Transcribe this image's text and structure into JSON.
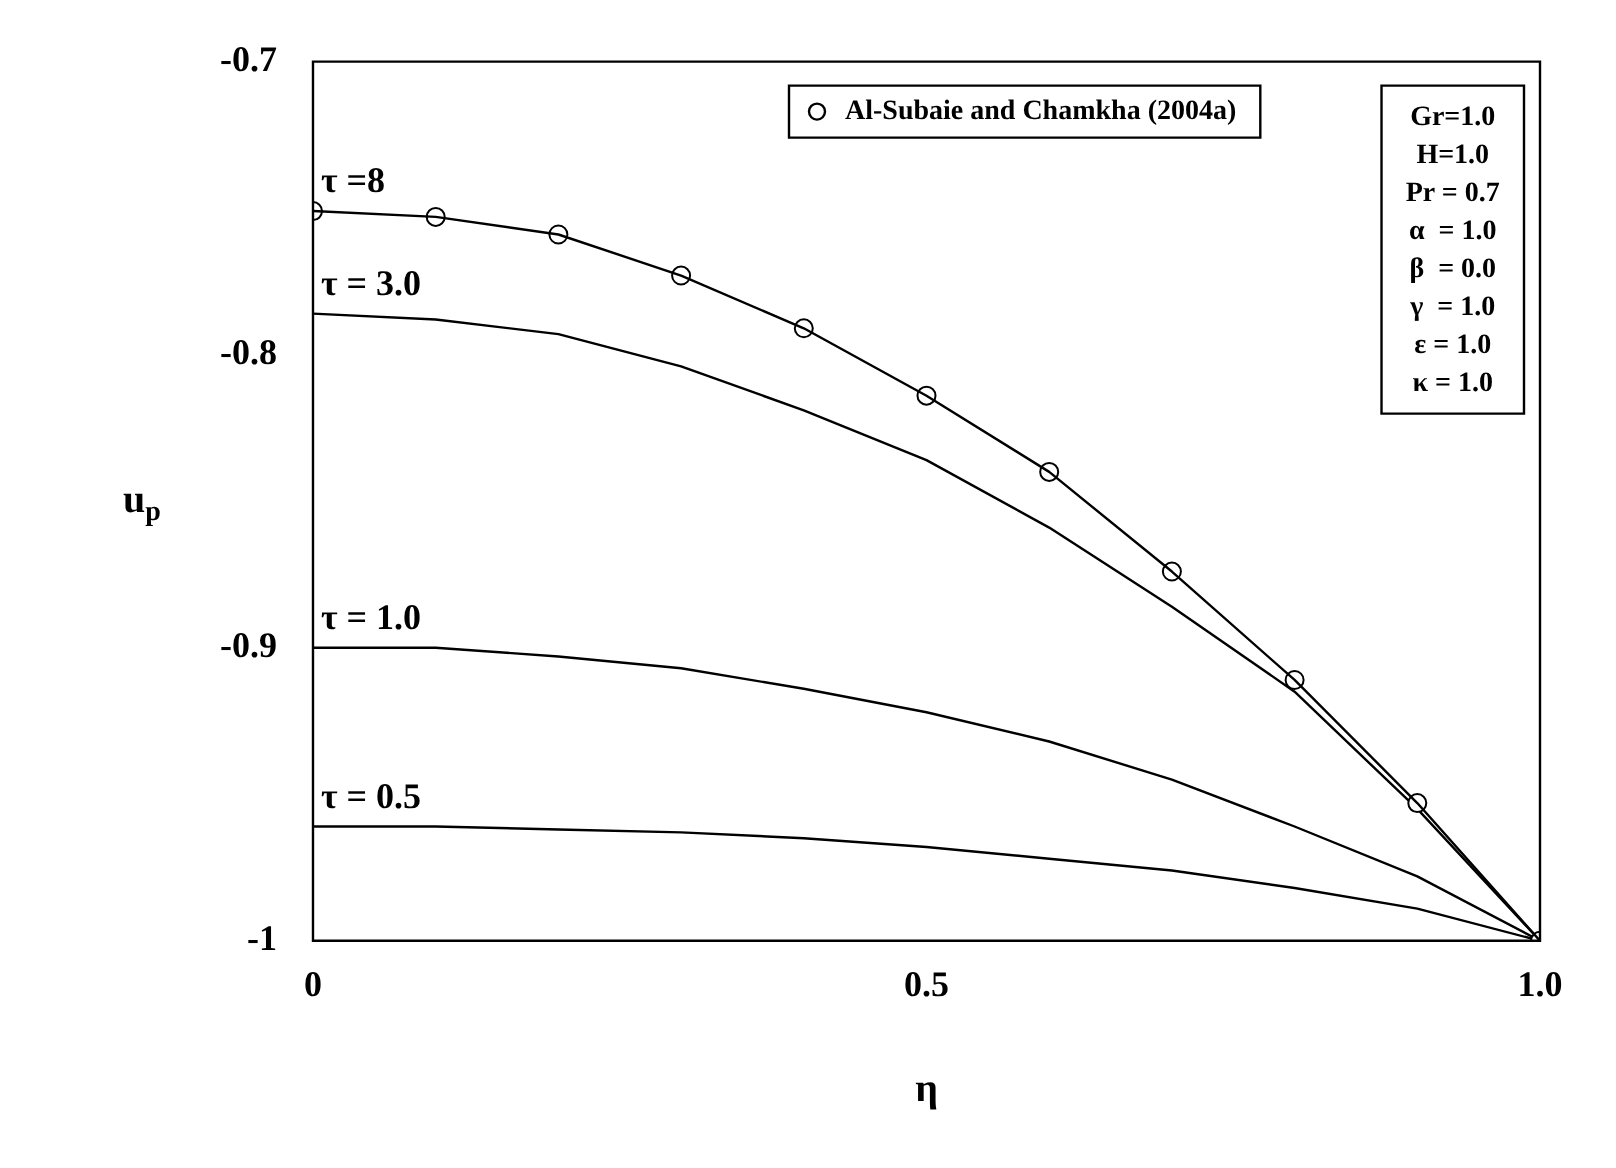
{
  "chart_data": {
    "type": "line",
    "xlabel": "η",
    "ylabel": "u$_{p}$",
    "xlim": [
      0,
      1
    ],
    "xticks": [
      0,
      0.5,
      {
        "value": 1,
        "label": "1.0"
      }
    ],
    "ylim": [
      -1,
      -0.7
    ],
    "yticks": [
      -1,
      -0.9,
      -0.8,
      -0.7
    ],
    "grid": false,
    "legend": "top",
    "line_style": "solid",
    "series": [
      {
        "name": "τ =8",
        "color": "#000000",
        "marker": "none",
        "x": [
          0,
          0.1,
          0.2,
          0.3,
          0.4,
          0.5,
          0.6,
          0.7,
          0.8,
          0.9,
          1
        ],
        "values": [
          -0.751,
          -0.753,
          -0.759,
          -0.773,
          -0.791,
          -0.814,
          -0.84,
          -0.874,
          -0.911,
          -0.953,
          -1
        ]
      },
      {
        "name": "Al-Subaie and Chamkha (2004a)",
        "type": "scatter",
        "color": "#000000",
        "marker": "circle",
        "x": [
          0,
          0.1,
          0.2,
          0.3,
          0.4,
          0.5,
          0.6,
          0.7,
          0.8,
          0.9,
          1
        ],
        "values": [
          -0.751,
          -0.753,
          -0.759,
          -0.773,
          -0.791,
          -0.814,
          -0.84,
          -0.874,
          -0.911,
          -0.953,
          -1
        ]
      },
      {
        "name": "τ = 3.0",
        "color": "#000000",
        "marker": "none",
        "x": [
          0,
          0.1,
          0.2,
          0.3,
          0.4,
          0.5,
          0.6,
          0.7,
          0.8,
          0.9,
          1
        ],
        "values": [
          -0.786,
          -0.788,
          -0.793,
          -0.804,
          -0.819,
          -0.836,
          -0.859,
          -0.886,
          -0.915,
          -0.955,
          -1
        ]
      },
      {
        "name": "τ = 1.0",
        "color": "#000000",
        "marker": "none",
        "x": [
          0,
          0.1,
          0.2,
          0.3,
          0.4,
          0.5,
          0.6,
          0.7,
          0.8,
          0.9,
          1
        ],
        "values": [
          -0.9,
          -0.9,
          -0.903,
          -0.907,
          -0.914,
          -0.922,
          -0.932,
          -0.945,
          -0.961,
          -0.978,
          -1
        ]
      },
      {
        "name": "τ = 0.5",
        "color": "#000000",
        "marker": "none",
        "x": [
          0,
          0.1,
          0.2,
          0.3,
          0.4,
          0.5,
          0.6,
          0.7,
          0.8,
          0.9,
          1
        ],
        "values": [
          -0.961,
          -0.961,
          -0.962,
          -0.963,
          -0.965,
          -0.968,
          -0.972,
          -0.976,
          -0.982,
          -0.989,
          -1
        ]
      }
    ],
    "annotations": [
      "Gr=1.0",
      "H=1.0",
      "Pr = 0.7",
      "α  = 1.0",
      "β  = 0.0",
      "γ  = 1.0",
      "ε = 1.0",
      "κ = 1.0"
    ]
  }
}
